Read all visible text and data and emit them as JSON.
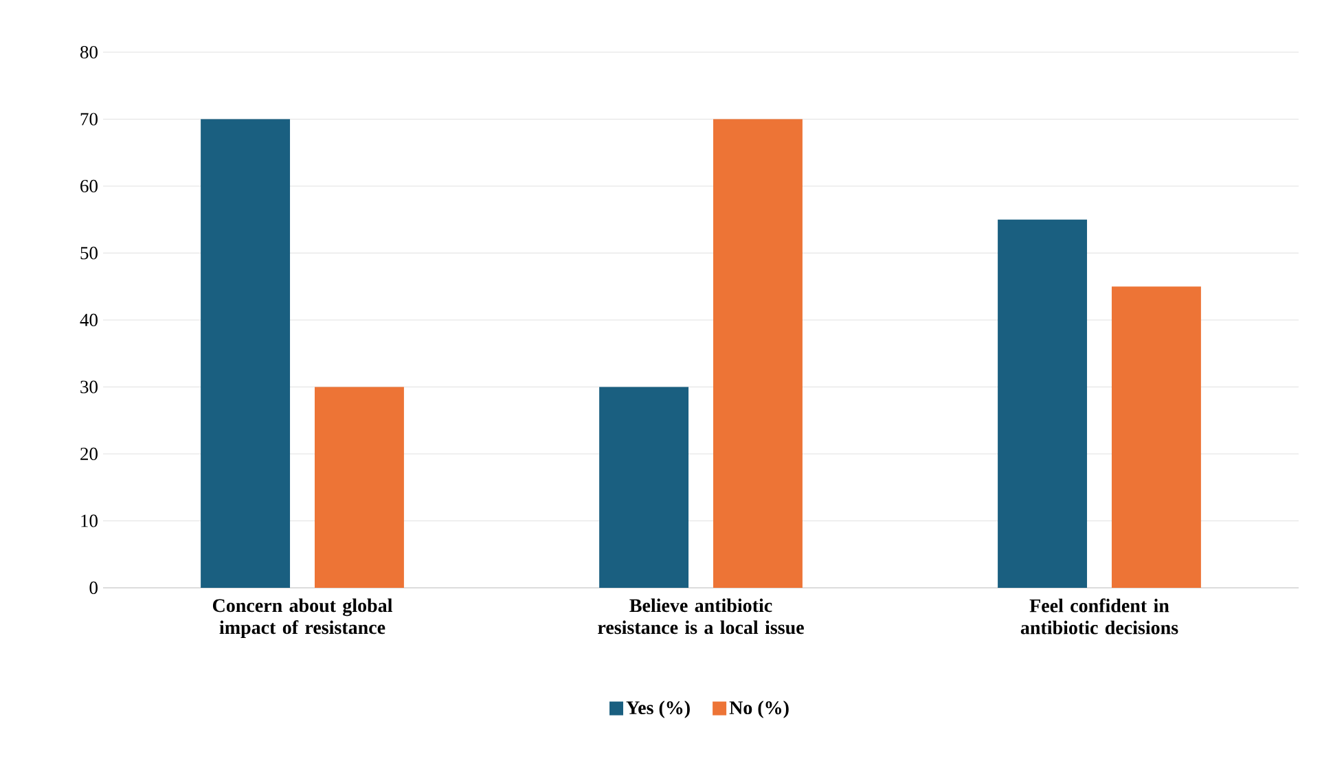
{
  "chart_data": {
    "type": "bar",
    "categories": [
      "Concern about global impact of resistance",
      "Believe antibiotic resistance is a local issue",
      "Feel confident in antibiotic decisions"
    ],
    "series": [
      {
        "name": "Yes (%)",
        "color": "#1a5f80",
        "values": [
          70,
          30,
          55
        ]
      },
      {
        "name": "No (%)",
        "color": "#ed7436",
        "values": [
          30,
          70,
          45
        ]
      }
    ],
    "ylim": [
      0,
      80
    ],
    "yticks": [
      0,
      10,
      20,
      30,
      40,
      50,
      60,
      70,
      80
    ],
    "grid": "y",
    "legend": "bottom"
  }
}
